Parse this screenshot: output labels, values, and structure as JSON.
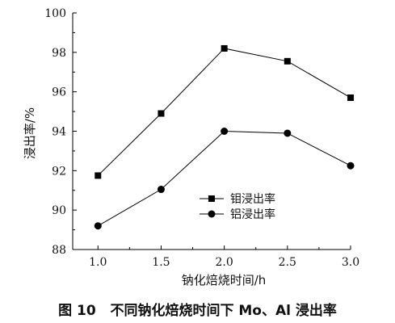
{
  "chart_data": {
    "type": "line",
    "x": [
      1.0,
      1.5,
      2.0,
      2.5,
      3.0
    ],
    "series": [
      {
        "name": "钼浸出率",
        "values": [
          91.75,
          94.9,
          98.2,
          97.55,
          95.7
        ],
        "marker": "square"
      },
      {
        "name": "铝浸出率",
        "values": [
          89.2,
          91.05,
          94.0,
          93.9,
          92.25
        ],
        "marker": "circle"
      }
    ],
    "xlabel": "钠化焙烧时间/h",
    "ylabel": "浸出率/%",
    "xlim": [
      0.8,
      3.0
    ],
    "ylim": [
      88,
      100
    ],
    "xticks": [
      "1.0",
      "1.5",
      "2.0",
      "2.5",
      "3.0"
    ],
    "yticks": [
      "88",
      "90",
      "92",
      "94",
      "96",
      "98",
      "100"
    ],
    "grid": false,
    "legend_position": "lower-right",
    "line_color": "#000000"
  },
  "caption": {
    "label": "图 10",
    "text": "不同钠化焙烧时间下 Mo、Al 浸出率"
  }
}
